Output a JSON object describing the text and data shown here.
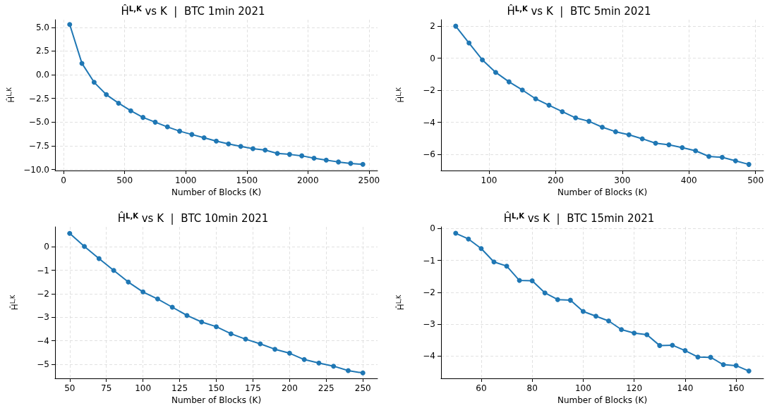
{
  "chart_data": [
    {
      "type": "line",
      "title": "Ĥ$^{L,K}$ vs K  |  BTC 1min 2021",
      "xlabel": "Number of Blocks (K)",
      "ylabel": "Ĥ$^{L,K}$",
      "x": [
        50,
        150,
        250,
        350,
        450,
        550,
        650,
        750,
        850,
        950,
        1050,
        1150,
        1250,
        1350,
        1450,
        1550,
        1650,
        1750,
        1850,
        1950,
        2050,
        2150,
        2250,
        2350,
        2450
      ],
      "series": [
        {
          "color": "#1f77b4",
          "values": [
            5.3,
            1.2,
            -0.8,
            -2.1,
            -3.0,
            -3.8,
            -4.5,
            -5.0,
            -5.5,
            -5.95,
            -6.3,
            -6.65,
            -7.0,
            -7.3,
            -7.55,
            -7.8,
            -7.95,
            -8.3,
            -8.4,
            -8.55,
            -8.8,
            -9.0,
            -9.2,
            -9.35,
            -9.45
          ]
        }
      ],
      "xlim": [
        -70,
        2570
      ],
      "xticks": [
        0,
        500,
        1000,
        1500,
        2000,
        2500
      ],
      "ylim": [
        -10.1,
        5.8
      ],
      "yticks": [
        {
          "value": -10,
          "label": "−10.0"
        },
        {
          "value": -7.5,
          "label": "−7.5"
        },
        {
          "value": -5,
          "label": "−5.0"
        },
        {
          "value": -2.5,
          "label": "−2.5"
        },
        {
          "value": 0,
          "label": "0.0"
        },
        {
          "value": 2.5,
          "label": "2.5"
        },
        {
          "value": 5,
          "label": "5.0"
        }
      ],
      "grid": true,
      "marker": "circle",
      "line_style": "solid"
    },
    {
      "type": "line",
      "title": "Ĥ$^{L,K}$ vs K  |  BTC 5min 2021",
      "xlabel": "Number of Blocks (K)",
      "ylabel": "Ĥ$^{L,K}$",
      "x": [
        50,
        70,
        90,
        110,
        130,
        150,
        170,
        190,
        210,
        230,
        250,
        270,
        290,
        310,
        330,
        350,
        370,
        390,
        410,
        430,
        450,
        470,
        490
      ],
      "series": [
        {
          "color": "#1f77b4",
          "values": [
            2.0,
            0.95,
            -0.1,
            -0.88,
            -1.47,
            -1.98,
            -2.53,
            -2.93,
            -3.33,
            -3.72,
            -3.93,
            -4.3,
            -4.58,
            -4.77,
            -5.02,
            -5.3,
            -5.4,
            -5.57,
            -5.77,
            -6.12,
            -6.18,
            -6.4,
            -6.62
          ]
        }
      ],
      "xlim": [
        28,
        512
      ],
      "xticks": [
        100,
        200,
        300,
        400,
        500
      ],
      "ylim": [
        -7.0,
        2.4
      ],
      "yticks": [
        {
          "value": -6,
          "label": "−6"
        },
        {
          "value": -4,
          "label": "−4"
        },
        {
          "value": -2,
          "label": "−2"
        },
        {
          "value": 0,
          "label": "0"
        },
        2
      ],
      "grid": true,
      "marker": "circle",
      "line_style": "solid"
    },
    {
      "type": "line",
      "title": "Ĥ$^{L,K}$ vs K  |  BTC 10min 2021",
      "xlabel": "Number of Blocks (K)",
      "ylabel": "Ĥ$^{L,K}$",
      "x": [
        50,
        60,
        70,
        80,
        90,
        100,
        110,
        120,
        130,
        140,
        150,
        160,
        170,
        180,
        190,
        200,
        210,
        220,
        230,
        240,
        250
      ],
      "series": [
        {
          "color": "#1f77b4",
          "values": [
            0.57,
            0.02,
            -0.5,
            -1.0,
            -1.5,
            -1.92,
            -2.22,
            -2.57,
            -2.92,
            -3.2,
            -3.4,
            -3.7,
            -3.93,
            -4.13,
            -4.36,
            -4.53,
            -4.8,
            -4.95,
            -5.08,
            -5.27,
            -5.37
          ]
        }
      ],
      "xlim": [
        40,
        260
      ],
      "xticks": [
        50,
        75,
        100,
        125,
        150,
        175,
        200,
        225,
        250
      ],
      "ylim": [
        -5.6,
        0.85
      ],
      "yticks": [
        {
          "value": -5,
          "label": "−5"
        },
        {
          "value": -4,
          "label": "−4"
        },
        {
          "value": -3,
          "label": "−3"
        },
        {
          "value": -2,
          "label": "−2"
        },
        {
          "value": -1,
          "label": "−1"
        },
        {
          "value": 0,
          "label": "0"
        }
      ],
      "grid": true,
      "marker": "circle",
      "line_style": "solid"
    },
    {
      "type": "line",
      "title": "Ĥ$^{L,K}$ vs K  |  BTC 15min 2021",
      "xlabel": "Number of Blocks (K)",
      "ylabel": "Ĥ$^{L,K}$",
      "x": [
        50,
        55,
        60,
        65,
        70,
        75,
        80,
        85,
        90,
        95,
        100,
        105,
        110,
        115,
        120,
        125,
        130,
        135,
        140,
        145,
        150,
        155,
        160,
        165
      ],
      "series": [
        {
          "color": "#1f77b4",
          "values": [
            -0.15,
            -0.33,
            -0.63,
            -1.05,
            -1.18,
            -1.63,
            -1.64,
            -2.02,
            -2.23,
            -2.25,
            -2.6,
            -2.75,
            -2.9,
            -3.17,
            -3.28,
            -3.33,
            -3.67,
            -3.66,
            -3.83,
            -4.03,
            -4.04,
            -4.27,
            -4.3,
            -4.47
          ]
        }
      ],
      "xlim": [
        44.25,
        170.75
      ],
      "xticks": [
        60,
        80,
        100,
        120,
        140,
        160
      ],
      "ylim": [
        -4.7,
        0.05
      ],
      "yticks": [
        {
          "value": -4,
          "label": "−4"
        },
        {
          "value": -3,
          "label": "−3"
        },
        {
          "value": -2,
          "label": "−2"
        },
        {
          "value": -1,
          "label": "−1"
        },
        {
          "value": 0,
          "label": "0"
        }
      ],
      "grid": true,
      "marker": "circle",
      "line_style": "solid"
    }
  ]
}
